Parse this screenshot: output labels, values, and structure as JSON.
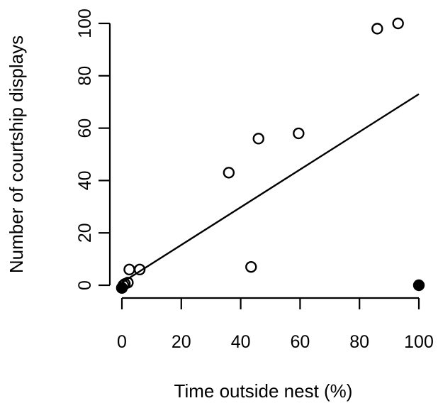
{
  "chart_data": {
    "type": "scatter",
    "xlabel": "Time outside nest (%)",
    "ylabel": "Number of courtship displays",
    "xlim": [
      0,
      100
    ],
    "ylim": [
      0,
      100
    ],
    "x_ticks": [
      0,
      20,
      40,
      60,
      80,
      100
    ],
    "y_ticks": [
      0,
      20,
      40,
      60,
      80,
      100
    ],
    "series": [
      {
        "marker": "open-circle",
        "points": [
          {
            "x": 0,
            "y": -1
          },
          {
            "x": 0.5,
            "y": 0
          },
          {
            "x": 1,
            "y": 0.5
          },
          {
            "x": 2,
            "y": 1
          },
          {
            "x": 2.5,
            "y": 6
          },
          {
            "x": 6,
            "y": 6
          },
          {
            "x": 36,
            "y": 43
          },
          {
            "x": 43.5,
            "y": 7
          },
          {
            "x": 46,
            "y": 56
          },
          {
            "x": 59.5,
            "y": 58
          },
          {
            "x": 86,
            "y": 98
          },
          {
            "x": 93,
            "y": 100
          }
        ]
      },
      {
        "marker": "filled-circle",
        "points": [
          {
            "x": 0,
            "y": -1
          },
          {
            "x": 100,
            "y": 0
          }
        ]
      }
    ],
    "regression_line": {
      "x0": 0,
      "y0": 1,
      "x1": 100,
      "y1": 73
    },
    "grid": false,
    "legend": "none"
  }
}
